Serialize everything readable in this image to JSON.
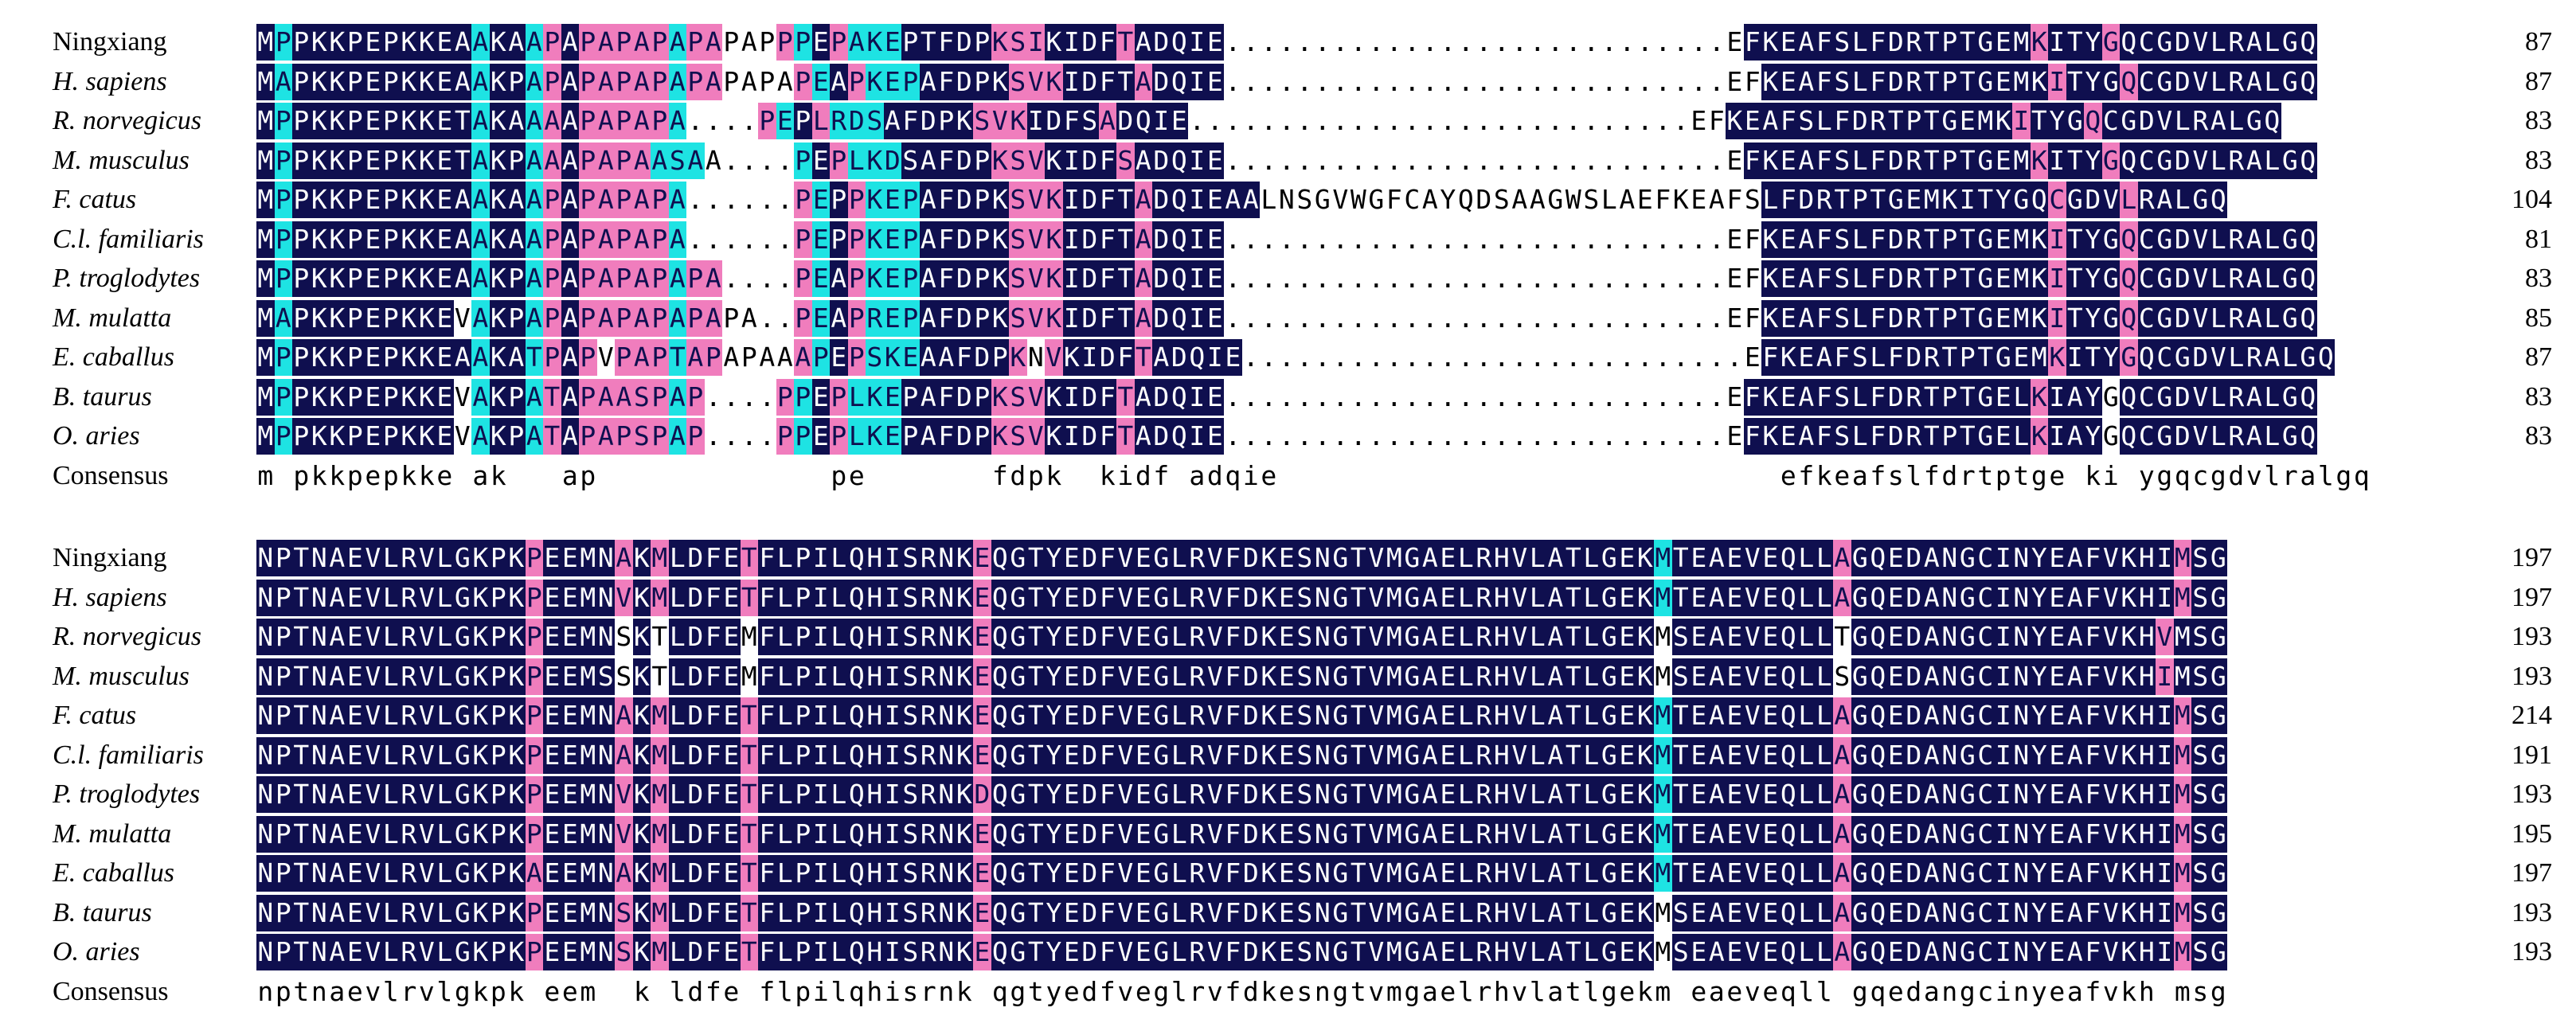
{
  "colors": {
    "identical": "#0f0f4f",
    "high_similarity": "#f07dbd",
    "partial_similarity": "#1ee3e3",
    "none": "#ffffff"
  },
  "blocks": [
    {
      "rows": [
        {
          "name": "Ningxiang",
          "italic": false,
          "seq": "MPPKKPEPKKEAAKAAPAPAPAPAPAPAPPPEPAKEPTFDPKSIKIDFTADQIE............................EFKEAFSLFDRTPTGEMKITYGQCGDVLRALGQ",
          "shade": "hchhhhhhhhhhchhcphpppppcppnnnpchpccchhhhhppphhhhphhhhhhnnnnnnnnnnnnnnnnnnnnnnnnnnnnhhhhhhhhhhhhhhhhphhhphhhhhhhhhhhhh",
          "num": "87"
        },
        {
          "name": "H. sapiens",
          "italic": true,
          "seq": "MAPKKPEPKKEAAKPAPAPAPAPAPAPAPAPEAPKEPAFDPKSVKIDFTADQIE............................EFKEAFSLFDRTPTGEMKITYGQCGDVLRALGQ",
          "shade": "hchhhhhhhhhhchhcphpppppcppnnnnpchpccchhhhhppphhhhphhhhhhnnnnnnnnnnnnnnnnnnnnnnnnnnnnhhhhhhhhhhhhhhhhphhhphhhhhhhhhhhhh",
          "num": "87"
        },
        {
          "name": "R. norvegicus",
          "italic": true,
          "seq": "MPPKKPEPKKETAKAAAAPAPAPA....PEPLRDSAFDPKSVKIDFSADQIE............................EFKEAFSLFDRTPTGEMKITYGQCGDVLRALGQ",
          "shade": "hchhhhhhhhhhchhcphpppppcnnnnpchpccchhhhhppphhhhphhhhhhnnnnnnnnnnnnnnnnnnnnnnnnnnnnhhhhhhhhhhhhhhhhphhhphhhhhhhhhhhhh",
          "num": "83"
        },
        {
          "name": "M. musculus",
          "italic": true,
          "seq": "MPPKKPEPKKETAKPAAAPAPAASAA....PEPLKDSAFDPKSVKIDFSADQIE............................EFKEAFSLFDRTPTGEMKITYGQCGDVLRALGQ",
          "shade": "hchhhhhhhhhhchhcphppppcccnnnnpchpccchhhhhppphhhhphhhhhhnnnnnnnnnnnnnnnnnnnnnnnnnnnnhhhhhhhhhhhhhhhhphhhphhhhhhhhhhhhh",
          "num": "83"
        },
        {
          "name": "F. catus",
          "italic": true,
          "seq": "MPPKKPEPKKEAAKAAPAPAPAPA......PEPPKEPAFDPKSVKIDFTADQIEAALNSGVWGFCAYQDSAAGWSLAEFKEAFSLFDRTPTGEMKITYGQCGDVLRALGQ",
          "shade": "hchhhhhhhhhhchhcphpppppcnnnnnnpchpccchhhhhppphhhhphhhhhhnnnnnnnnnnnnnnnnnnnnnnnnnnnnhhhhhhhhhhhhhhhhphhhphhhhhhhhhhhhh",
          "num": "104"
        },
        {
          "name": "C.l. familiaris",
          "italic": true,
          "seq": "MPPKKPEPKKEAAKAAPAPAPAPA......PEPPKEPAFDPKSVKIDFTADQIE............................EFKEAFSLFDRTPTGEMKITYGQCGDVLRALGQ",
          "shade": "hchhhhhhhhhhchhcphpppppcnnnnnnpchpccchhhhhppphhhhphhhhhhnnnnnnnnnnnnnnnnnnnnnnnnnnnnhhhhhhhhhhhhhhhhphhhphhhhhhhhhhhhh",
          "num": "81"
        },
        {
          "name": "P. troglodytes",
          "italic": true,
          "seq": "MPPKKPEPKKEAAKPAPAPAPAPAPA....PEAPKEPAFDPKSVKIDFTADQIE............................EFKEAFSLFDRTPTGEMKITYGQCGDVLRALGQ",
          "shade": "hchhhhhhhhhhchhcphpppppcppnnnnpchpccchhhhhppphhhhphhhhhhnnnnnnnnnnnnnnnnnnnnnnnnnnnnhhhhhhhhhhhhhhhhphhhphhhhhhhhhhhhh",
          "num": "83"
        },
        {
          "name": "M. mulatta",
          "italic": true,
          "seq": "MAPKKPEPKKEVAKPAPAPAPAPAPAPA..PEAPREPAFDPKSVKIDFTADQIE............................EFKEAFSLFDRTPTGEMKITYGQCGDVLRALGQ",
          "shade": "hchhhhhhhhhnchhcphpppppcppnnnnpchpccchhhhhppphhhhphhhhhhnnnnnnnnnnnnnnnnnnnnnnnnnnnnhhhhhhhhhhhhhhhhphhhphhhhhhhhhhhhh",
          "num": "85"
        },
        {
          "name": "E.  caballus",
          "italic": true,
          "seq": "MPPKKPEPKKEAAKATPAPVPAPTAPAPAAAPEPSKEAAFDPKNVKIDFTADQIE............................EFKEAFSLFDRTPTGEMKITYGQCGDVLRALGQ",
          "shade": "hchhhhhhhhhhchhcphpnpppcppnnnnpchpccchhhhhpnphhhhphhhhhhnnnnnnnnnnnnnnnnnnnnnnnnnnnnhhhhhhhhhhhhhhhhphhhphhhhhhhhhhhhh",
          "num": "87"
        },
        {
          "name": "B. taurus",
          "italic": true,
          "seq": "MPPKKPEPKKEVAKPATAPAASPAP....PPEPLKEPAFDPKSVKIDFTADQIE............................EFKEAFSLFDRTPTGELKIAYGQCGDVLRALGQ",
          "shade": "hchhhhhhhhhnchhcphpppppcpnnnnpchpccchhhhhppphhhhphhhhhhnnnnnnnnnnnnnnnnnnnnnnnnnnnnhhhhhhhhhhhhhhhhphhhnhhhhhhhhhhhhh",
          "num": "83"
        },
        {
          "name": "O. aries",
          "italic": true,
          "seq": "MPPKKPEPKKEVAKPATAPAPSPAP....PPEPLKEPAFDPKSVKIDFTADQIE............................EFKEAFSLFDRTPTGELKIAYGQCGDVLRALGQ",
          "shade": "hchhhhhhhhhnchhcphpppppcpnnnnpchpccchhhhhppphhhhphhhhhhnnnnnnnnnnnnnnnnnnnnnnnnnnnnhhhhhhhhhhhhhhhhphhhnhhhhhhhhhhhhh",
          "num": "83"
        }
      ],
      "consensus_label": "Consensus",
      "consensus": "m pkkpepkke ak   ap             pe       fdpk  kidf adqie                            efkeafslfdrtptge ki ygqcgdvlralgq"
    },
    {
      "rows": [
        {
          "name": "Ningxiang",
          "italic": false,
          "seq": "NPTNAEVLRVLGKPKPEEMNAKMLDFETFLPILQHISRNKEQGTYEDFVEGLRVFDKESNGTVMGAELRHVLATLGEKMTEAEVEQLLAGQEDANGCINYEAFVKHIMSG",
          "shade": "hhhhhhhhhhhhhhhphhhhphphhhhphhhhhhhhhhhhphhhhhhhhhhhhhhhhhhhhhhhhhhhhhhhhhhhhhchhhhhhhhhphhhhhhhhhhhhhhhhhhphhh",
          "num": "197"
        },
        {
          "name": "H. sapiens",
          "italic": true,
          "seq": "NPTNAEVLRVLGKPKPEEMNVKMLDFETFLPILQHISRNKEQGTYEDFVEGLRVFDKESNGTVMGAELRHVLATLGEKMTEAEVEQLLAGQEDANGCINYEAFVKHIMSG",
          "shade": "hhhhhhhhhhhhhhhphhhhphphhhhphhhhhhhhhhhhphhhhhhhhhhhhhhhhhhhhhhhhhhhhhhhhhhhhhchhhhhhhhhphhhhhhhhhhhhhhhhhhphhh",
          "num": "197"
        },
        {
          "name": "R. norvegicus",
          "italic": true,
          "seq": "NPTNAEVLRVLGKPKPEEMNSKTLDFEMFLPILQHISRNKEQGTYEDFVEGLRVFDKESNGTVMGAELRHVLATLGEKMSEAEVEQLLTGQEDANGCINYEAFVKHVMSG",
          "shade": "hhhhhhhhhhhhhhhphhhhnhnhhhhnhhhhhhhhhhhhphhhhhhhhhhhhhhhhhhhhhhhhhhhhhhhhhhhhhnhhhhhhhhhnhhhhhhhhhhhhhhhhhphhh",
          "num": "193"
        },
        {
          "name": "M. musculus",
          "italic": true,
          "seq": "NPTNAEVLRVLGKPKPEEMSSKTLDFEMFLPILQHISRNKEQGTYEDFVEGLRVFDKESNGTVMGAELRHVLATLGEKMSEAEVEQLLSGQEDANGCINYEAFVKHIMSG",
          "shade": "hhhhhhhhhhhhhhhphhhhnhnhhhhnhhhhhhhhhhhhphhhhhhhhhhhhhhhhhhhhhhhhhhhhhhhhhhhhhnhhhhhhhhhnhhhhhhhhhhhhhhhhhphhh",
          "num": "193"
        },
        {
          "name": "F. catus",
          "italic": true,
          "seq": "NPTNAEVLRVLGKPKPEEMNAKMLDFETFLPILQHISRNKEQGTYEDFVEGLRVFDKESNGTVMGAELRHVLATLGEKMTEAEVEQLLAGQEDANGCINYEAFVKHIMSG",
          "shade": "hhhhhhhhhhhhhhhphhhhphphhhhphhhhhhhhhhhhphhhhhhhhhhhhhhhhhhhhhhhhhhhhhhhhhhhhhchhhhhhhhhphhhhhhhhhhhhhhhhhhphhh",
          "num": "214"
        },
        {
          "name": "C.l. familiaris",
          "italic": true,
          "seq": "NPTNAEVLRVLGKPKPEEMNAKMLDFETFLPILQHISRNKEQGTYEDFVEGLRVFDKESNGTVMGAELRHVLATLGEKMTEAEVEQLLAGQEDANGCINYEAFVKHIMSG",
          "shade": "hhhhhhhhhhhhhhhphhhhphphhhhphhhhhhhhhhhhphhhhhhhhhhhhhhhhhhhhhhhhhhhhhhhhhhhhhchhhhhhhhhphhhhhhhhhhhhhhhhhhphhh",
          "num": "191"
        },
        {
          "name": "P. troglodytes",
          "italic": true,
          "seq": "NPTNAEVLRVLGKPKPEEMNVKMLDFETFLPILQHISRNKDQGTYEDFVEGLRVFDKESNGTVMGAELRHVLATLGEKMTEAEVEQLLAGQEDANGCINYEAFVKHIMSG",
          "shade": "hhhhhhhhhhhhhhhphhhhphphhhhphhhhhhhhhhhhphhhhhhhhhhhhhhhhhhhhhhhhhhhhhhhhhhhhhchhhhhhhhhphhhhhhhhhhhhhhhhhhphhh",
          "num": "193"
        },
        {
          "name": "M. mulatta",
          "italic": true,
          "seq": "NPTNAEVLRVLGKPKPEEMNVKMLDFETFLPILQHISRNKEQGTYEDFVEGLRVFDKESNGTVMGAELRHVLATLGEKMTEAEVEQLLAGQEDANGCINYEAFVKHIMSG",
          "shade": "hhhhhhhhhhhhhhhphhhhphphhhhphhhhhhhhhhhhphhhhhhhhhhhhhhhhhhhhhhhhhhhhhhhhhhhhhchhhhhhhhhphhhhhhhhhhhhhhhhhhphhh",
          "num": "195"
        },
        {
          "name": "E.  caballus",
          "italic": true,
          "seq": "NPTNAEVLRVLGKPKAEEMNAKMLDFETFLPILQHISRNKEQGTYEDFVEGLRVFDKESNGTVMGAELRHVLATLGEKMTEAEVEQLLAGQEDANGCINYEAFVKHIMSG",
          "shade": "hhhhhhhhhhhhhhhphhhhphphhhhphhhhhhhhhhhhphhhhhhhhhhhhhhhhhhhhhhhhhhhhhhhhhhhhhchhhhhhhhhphhhhhhhhhhhhhhhhhhphhh",
          "num": "197"
        },
        {
          "name": "B. taurus",
          "italic": true,
          "seq": "NPTNAEVLRVLGKPKPEEMNSKMLDFETFLPILQHISRNKEQGTYEDFVEGLRVFDKESNGTVMGAELRHVLATLGEKMSEAEVEQLLAGQEDANGCINYEAFVKHIMSG",
          "shade": "hhhhhhhhhhhhhhhphhhhphphhhhphhhhhhhhhhhhphhhhhhhhhhhhhhhhhhhhhhhhhhhhhhhhhhhhhnhhhhhhhhhphhhhhhhhhhhhhhhhhhphhh",
          "num": "193"
        },
        {
          "name": "O. aries",
          "italic": true,
          "seq": "NPTNAEVLRVLGKPKPEEMNSKMLDFETFLPILQHISRNKEQGTYEDFVEGLRVFDKESNGTVMGAELRHVLATLGEKMSEAEVEQLLAGQEDANGCINYEAFVKHIMSG",
          "shade": "hhhhhhhhhhhhhhhphhhhphphhhhphhhhhhhhhhhhphhhhhhhhhhhhhhhhhhhhhhhhhhhhhhhhhhhhhnhhhhhhhhhphhhhhhhhhhhhhhhhhhphhh",
          "num": "193"
        }
      ],
      "consensus_label": "Consensus",
      "consensus": "nptnaevlrvlgkpk eem  k ldfe flpilqhisrnk qgtyedfveglrvfdkesngtvmgaelrhvlatlgekm eaeveqll gqedangcinyeafvkh msg"
    }
  ]
}
